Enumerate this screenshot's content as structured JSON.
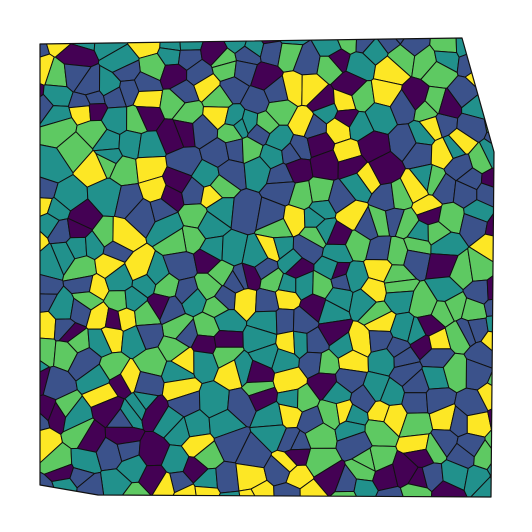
{
  "figure": {
    "kind": "voronoi-tessellation",
    "colormap": [
      "#440154",
      "#3b528b",
      "#21918c",
      "#5ec962",
      "#fde725"
    ],
    "background": "#ffffff",
    "edge_color": "#111111",
    "title": "",
    "caption": ""
  }
}
